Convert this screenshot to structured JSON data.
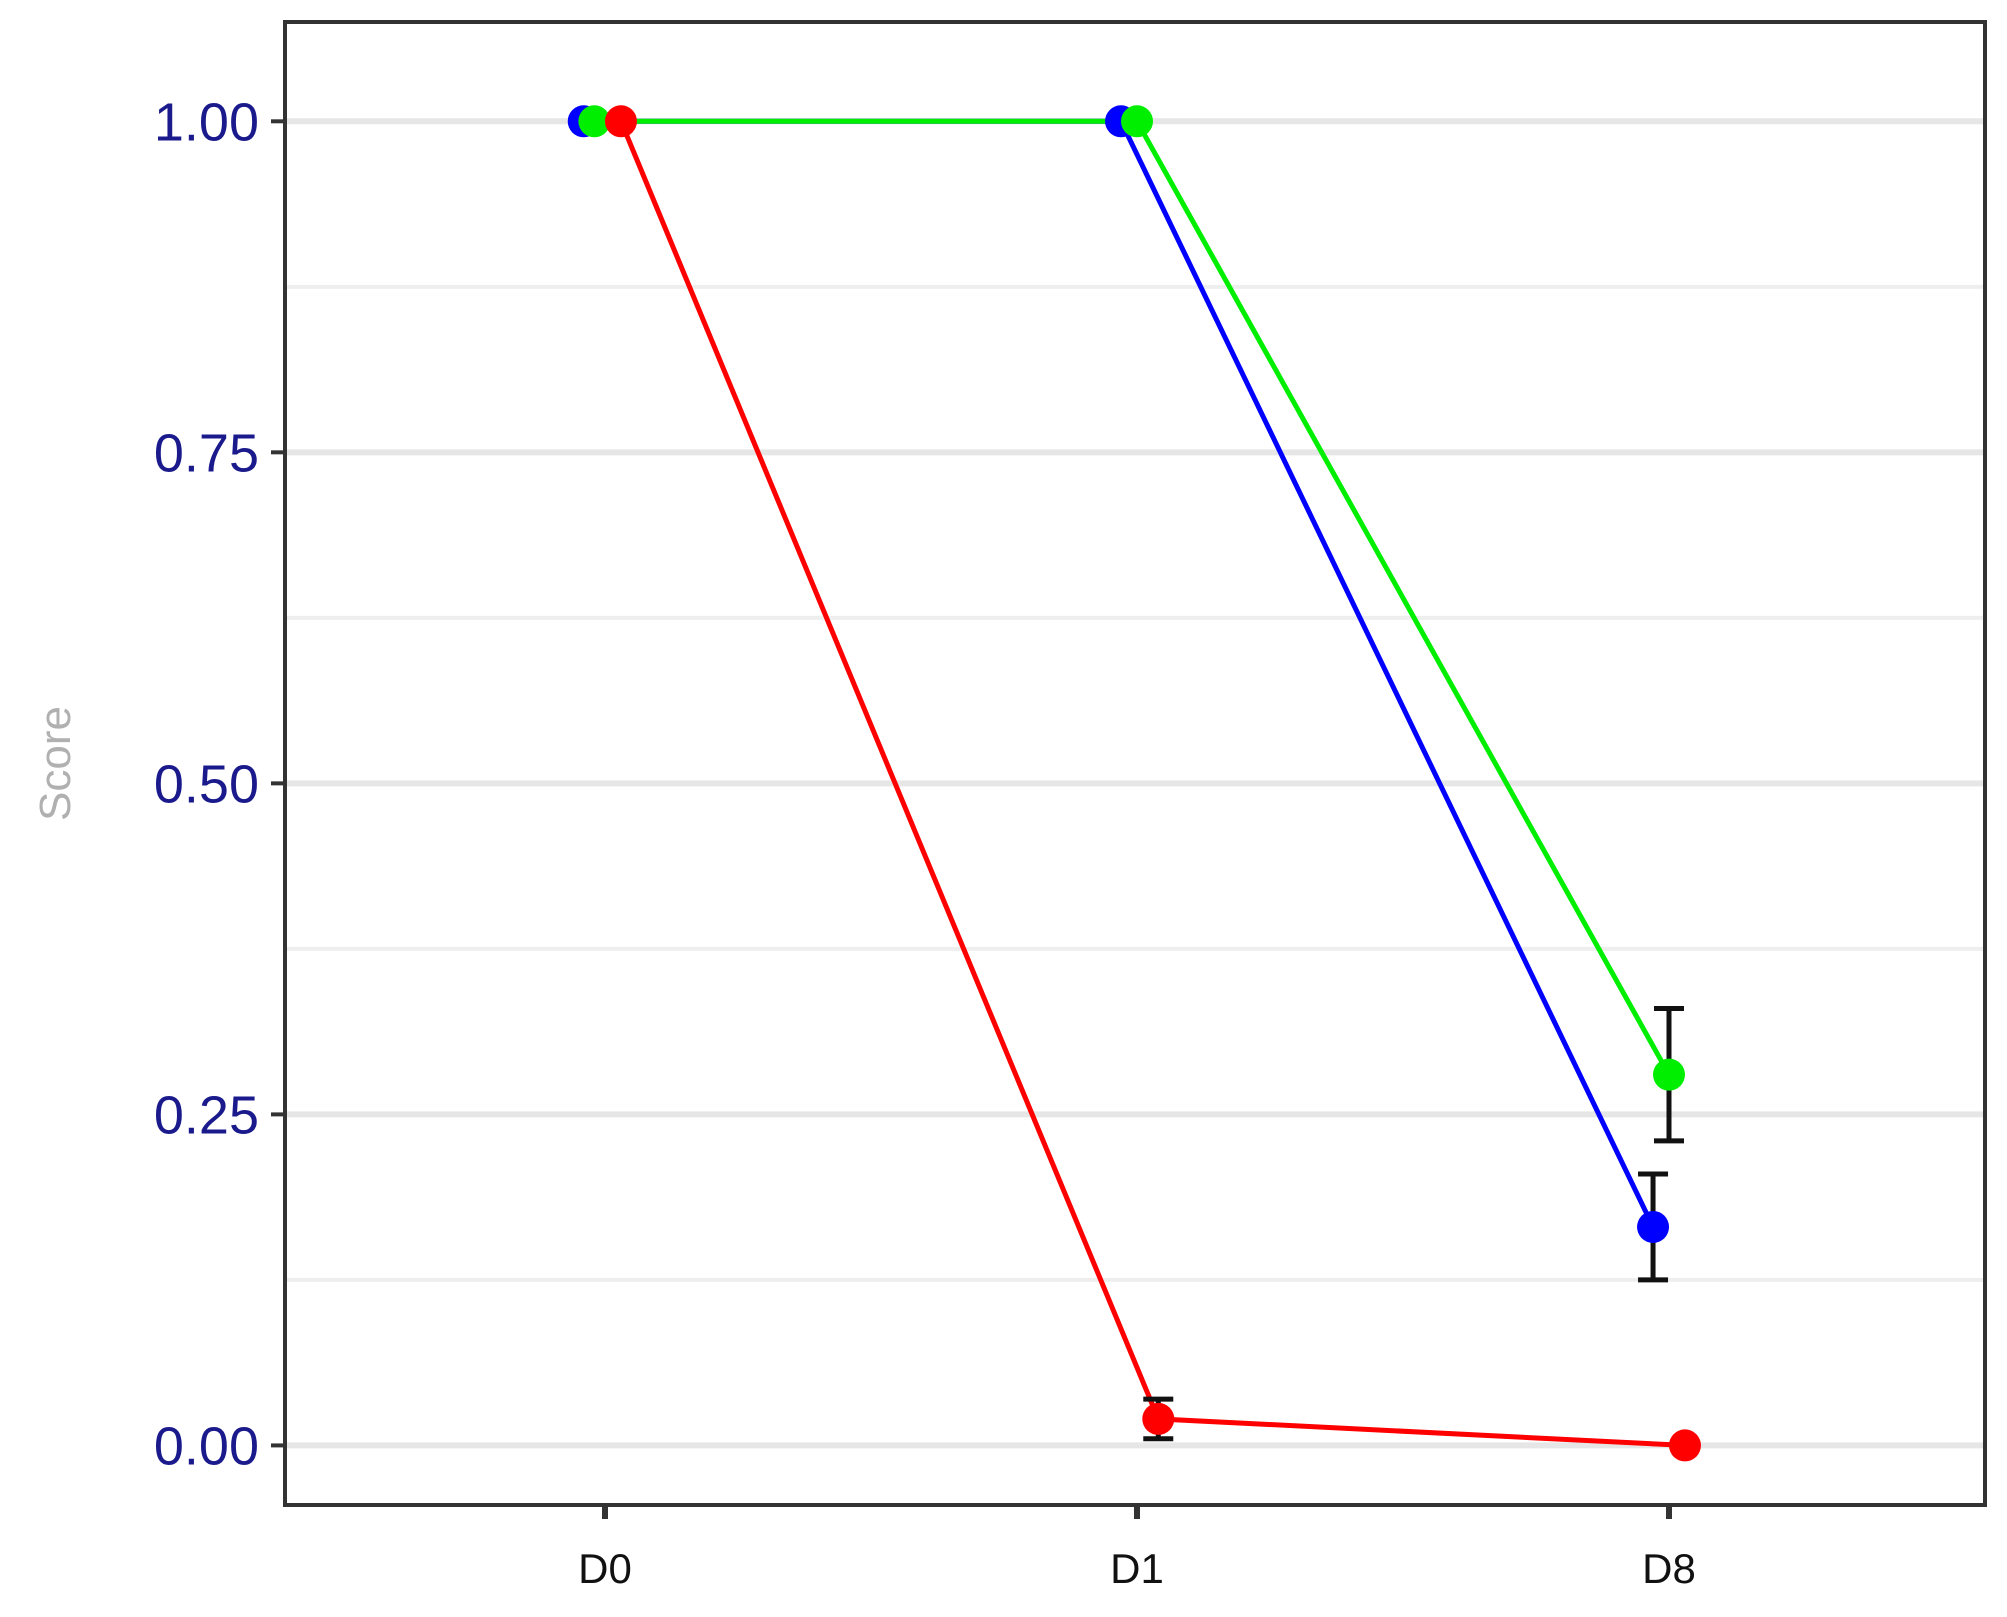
{
  "chart_data": {
    "type": "line",
    "categories": [
      "D0",
      "D1",
      "D8"
    ],
    "ylabel": "Score",
    "xlabel": "",
    "ylim": [
      -0.045,
      1.075
    ],
    "yticks": [
      0,
      0.25,
      0.5,
      0.75,
      1.0
    ],
    "ytick_labels": [
      "0.00",
      "0.25",
      "0.50",
      "0.75",
      "1.00"
    ],
    "grid": true,
    "legend": "none",
    "series": [
      {
        "color": "#0000ff",
        "x": [
          -0.04,
          0.97,
          1.97
        ],
        "values": [
          1.0,
          1.0,
          0.165
        ],
        "err": [
          null,
          null,
          0.04
        ]
      },
      {
        "color": "#00ee00",
        "x": [
          -0.02,
          1.0,
          2.0
        ],
        "values": [
          1.0,
          1.0,
          0.28
        ],
        "err": [
          null,
          null,
          0.05
        ]
      },
      {
        "color": "#ff0000",
        "x": [
          0.03,
          1.04,
          2.03
        ],
        "values": [
          1.0,
          0.02,
          0.0
        ],
        "err": [
          null,
          0.015,
          null
        ]
      }
    ]
  }
}
